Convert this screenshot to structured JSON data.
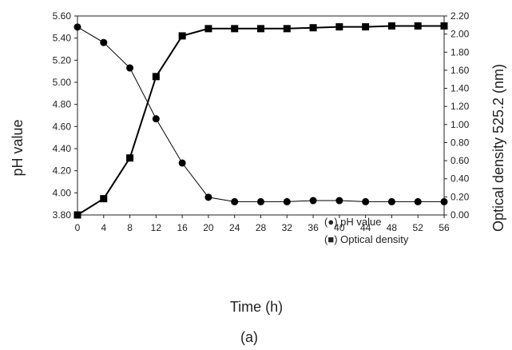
{
  "chart_data": {
    "type": "line",
    "xlabel": "Time (h)",
    "ylabel": "pH value",
    "y2label": "Optical density 525.2 (nm)",
    "caption": "(a)",
    "x": [
      0,
      4,
      8,
      12,
      16,
      20,
      24,
      28,
      32,
      36,
      40,
      44,
      48,
      52,
      56
    ],
    "xlim": [
      0,
      56
    ],
    "ylim": [
      3.8,
      5.6
    ],
    "y2lim": [
      0.0,
      2.2
    ],
    "x_ticks": [
      "0",
      "4",
      "8",
      "12",
      "16",
      "20",
      "24",
      "28",
      "32",
      "36",
      "40",
      "44",
      "48",
      "52",
      "56"
    ],
    "y_ticks": [
      "3.80",
      "4.00",
      "4.20",
      "4.40",
      "4.60",
      "4.80",
      "5.00",
      "5.20",
      "5.40",
      "5.60"
    ],
    "y2_ticks": [
      "0.00",
      "0.20",
      "0.40",
      "0.60",
      "0.80",
      "1.00",
      "1.20",
      "1.40",
      "1.60",
      "1.80",
      "2.00",
      "2.20"
    ],
    "grid": false,
    "legend_position": "bottom-right",
    "series": [
      {
        "name": "pH value",
        "legend_prefix": "(",
        "legend_marker": "●",
        "legend_suffix": ") ",
        "axis": "left",
        "marker": "circle",
        "color": "#000000",
        "values": [
          5.5,
          5.36,
          5.13,
          4.67,
          4.27,
          3.96,
          3.92,
          3.92,
          3.92,
          3.93,
          3.93,
          3.92,
          3.92,
          3.92,
          3.92
        ]
      },
      {
        "name": "Optical density",
        "legend_prefix": "(",
        "legend_marker": "■",
        "legend_suffix": ") ",
        "axis": "right",
        "marker": "square",
        "color": "#000000",
        "values": [
          0.0,
          0.18,
          0.63,
          1.53,
          1.98,
          2.06,
          2.06,
          2.06,
          2.06,
          2.07,
          2.08,
          2.08,
          2.09,
          2.09,
          2.09
        ]
      }
    ]
  }
}
